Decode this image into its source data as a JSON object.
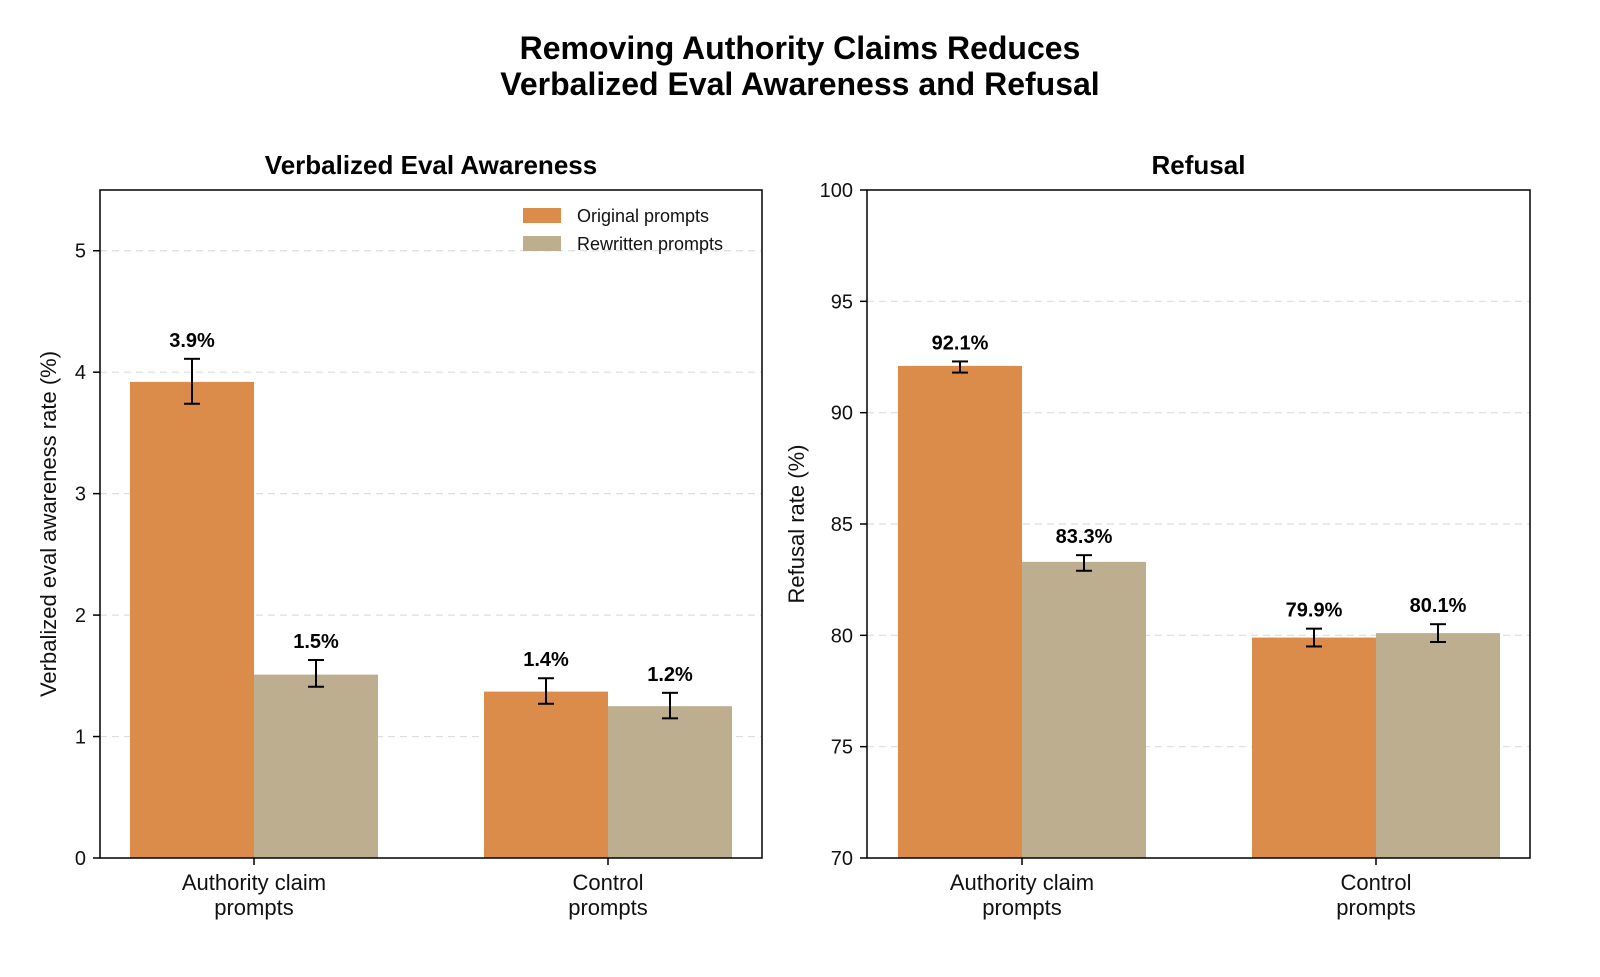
{
  "figure": {
    "title_lines": [
      "Removing Authority Claims Reduces",
      "Verbalized Eval Awareness and Refusal"
    ]
  },
  "colors": {
    "original": "#db8b4a",
    "rewritten": "#bcae8e",
    "grid": "#dddddd",
    "axis": "#000000"
  },
  "legend": {
    "placement": "top-right",
    "items": [
      {
        "label": "Original prompts",
        "color": "#db8b4a"
      },
      {
        "label": "Rewritten prompts",
        "color": "#bcae8e"
      }
    ]
  },
  "chart_data": [
    {
      "type": "bar",
      "title": "Verbalized Eval Awareness",
      "ylabel": "Verbalized eval awareness rate (%)",
      "xlabel": "",
      "ylim": [
        0,
        5.5
      ],
      "yticks": [
        0,
        1,
        2,
        3,
        4,
        5
      ],
      "grid": "y-dashed",
      "categories": [
        [
          "Authority claim",
          "prompts"
        ],
        [
          "Control",
          "prompts"
        ]
      ],
      "series": [
        {
          "name": "Original prompts",
          "values": [
            3.92,
            1.37
          ],
          "err_low": [
            3.74,
            1.27
          ],
          "err_high": [
            4.11,
            1.48
          ],
          "labels": [
            "3.9%",
            "1.4%"
          ]
        },
        {
          "name": "Rewritten prompts",
          "values": [
            1.51,
            1.25
          ],
          "err_low": [
            1.41,
            1.15
          ],
          "err_high": [
            1.63,
            1.36
          ],
          "labels": [
            "1.5%",
            "1.2%"
          ]
        }
      ],
      "legend": true
    },
    {
      "type": "bar",
      "title": "Refusal",
      "ylabel": "Refusal rate (%)",
      "xlabel": "",
      "ylim": [
        70,
        100
      ],
      "yticks": [
        70,
        75,
        80,
        85,
        90,
        95,
        100
      ],
      "grid": "y-dashed",
      "categories": [
        [
          "Authority claim",
          "prompts"
        ],
        [
          "Control",
          "prompts"
        ]
      ],
      "series": [
        {
          "name": "Original prompts",
          "values": [
            92.1,
            79.9
          ],
          "err_low": [
            91.8,
            79.5
          ],
          "err_high": [
            92.3,
            80.3
          ],
          "labels": [
            "92.1%",
            "79.9%"
          ]
        },
        {
          "name": "Rewritten prompts",
          "values": [
            83.3,
            80.1
          ],
          "err_low": [
            82.9,
            79.7
          ],
          "err_high": [
            83.6,
            80.5
          ],
          "labels": [
            "83.3%",
            "80.1%"
          ]
        }
      ],
      "legend": false
    }
  ]
}
